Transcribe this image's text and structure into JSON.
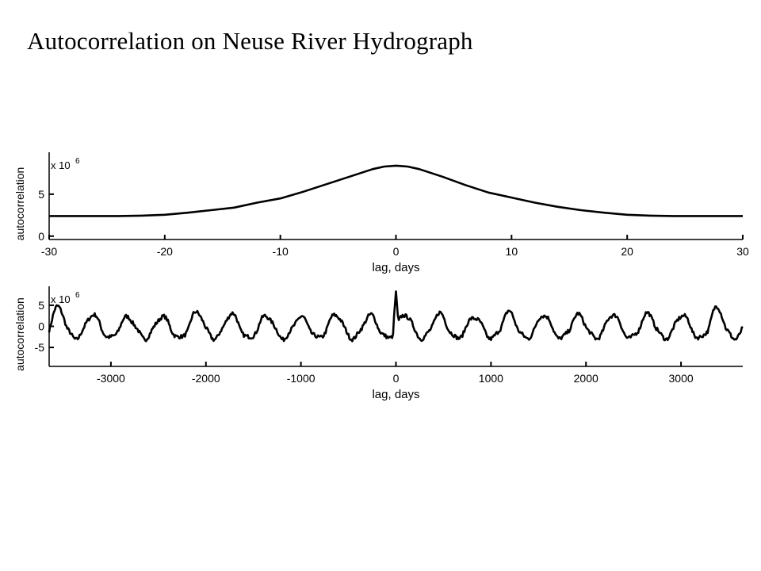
{
  "title": "Autocorrelation on Neuse River Hydrograph",
  "colors": {
    "line": "#000000",
    "background": "#ffffff"
  },
  "chart_data": [
    {
      "type": "line",
      "ylabel": "autocorrelation",
      "xlabel": "lag, days",
      "exponent_label": "x 10",
      "exponent_power": "6",
      "xlim": [
        -30,
        30
      ],
      "ylim": [
        -0.4,
        10
      ],
      "xticks": [
        -30,
        -20,
        -10,
        0,
        10,
        20,
        30
      ],
      "xtick_labels": [
        "-30",
        "-20",
        "-10",
        "0",
        "10",
        "20",
        "30"
      ],
      "yticks": [
        0,
        5
      ],
      "ytick_labels": [
        "0",
        "5"
      ],
      "x": [
        -30,
        -28,
        -26,
        -24,
        -22,
        -20,
        -18,
        -16,
        -14,
        -12,
        -10,
        -8,
        -6,
        -4,
        -2,
        -1,
        0,
        1,
        2,
        4,
        6,
        8,
        10,
        12,
        14,
        16,
        18,
        20,
        22,
        24,
        26,
        28,
        30
      ],
      "values": [
        2.4,
        2.4,
        2.4,
        2.4,
        2.45,
        2.55,
        2.8,
        3.1,
        3.4,
        4.0,
        4.5,
        5.3,
        6.2,
        7.1,
        8.0,
        8.3,
        8.4,
        8.3,
        8.0,
        7.1,
        6.1,
        5.2,
        4.6,
        4.0,
        3.5,
        3.1,
        2.8,
        2.55,
        2.45,
        2.4,
        2.4,
        2.4,
        2.4
      ]
    },
    {
      "type": "line",
      "ylabel": "autocorrelation",
      "xlabel": "lag, days",
      "exponent_label": "x 10",
      "exponent_power": "6",
      "xlim": [
        -3650,
        3650
      ],
      "ylim": [
        -9.5,
        9.5
      ],
      "xticks": [
        -3000,
        -2000,
        -1000,
        0,
        1000,
        2000,
        3000
      ],
      "xtick_labels": [
        "-3000",
        "-2000",
        "-1000",
        "0",
        "1000",
        "2000",
        "3000"
      ],
      "yticks": [
        5,
        0,
        -5
      ],
      "ytick_labels": [
        "5",
        "0",
        "-5"
      ],
      "oscillation": {
        "period_days": 365,
        "baseline": -0.5,
        "amplitude": 2.3,
        "peak_lag_offset": 95,
        "center_spike": 8.3,
        "peaks": [
          4.6,
          2.8,
          2.2,
          2.3,
          3.4,
          3.0,
          2.5,
          2.2,
          2.8,
          2.6,
          2.8,
          3.0,
          2.2,
          3.4,
          2.8,
          2.7,
          2.9,
          3.0,
          2.7,
          4.5
        ]
      }
    }
  ]
}
